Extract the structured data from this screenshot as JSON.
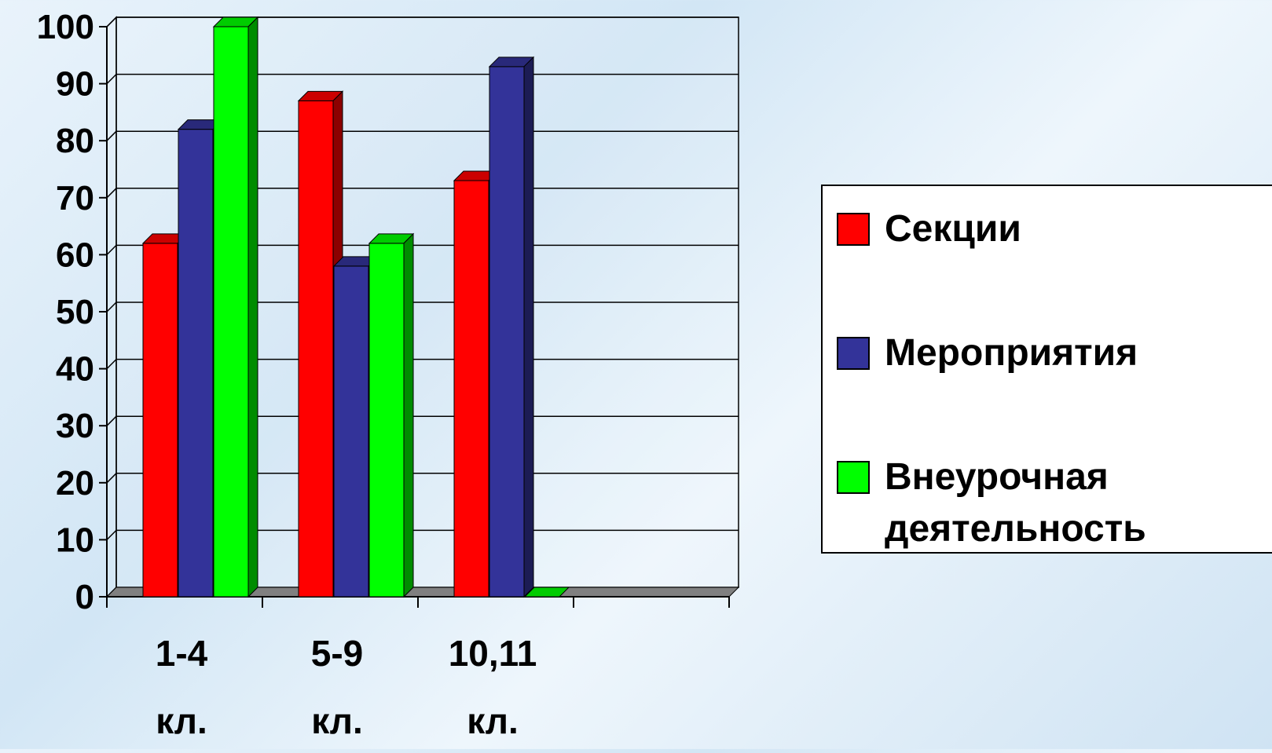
{
  "chart_data": {
    "type": "bar",
    "categories": [
      [
        "1-4",
        "кл."
      ],
      [
        "5-9",
        "кл."
      ],
      [
        "10,11",
        "кл."
      ],
      [
        "",
        ""
      ]
    ],
    "series": [
      {
        "name": "Секции",
        "values": [
          62,
          87,
          73,
          null
        ],
        "color": "#ff0000"
      },
      {
        "name": "Мероприятия",
        "values": [
          82,
          58,
          93,
          null
        ],
        "color": "#333399"
      },
      {
        "name": "Внеурочная деятельность",
        "name_lines": [
          "Внеурочная",
          "деятельность"
        ],
        "values": [
          100,
          62,
          0,
          null
        ],
        "color": "#00ff00"
      }
    ],
    "ylim": [
      0,
      100
    ],
    "y_ticks": [
      "0",
      "10",
      "20",
      "30",
      "40",
      "50",
      "60",
      "70",
      "80",
      "90",
      "100"
    ],
    "grid": true,
    "legend_position": "right",
    "title": "",
    "xlabel": "",
    "ylabel": ""
  }
}
